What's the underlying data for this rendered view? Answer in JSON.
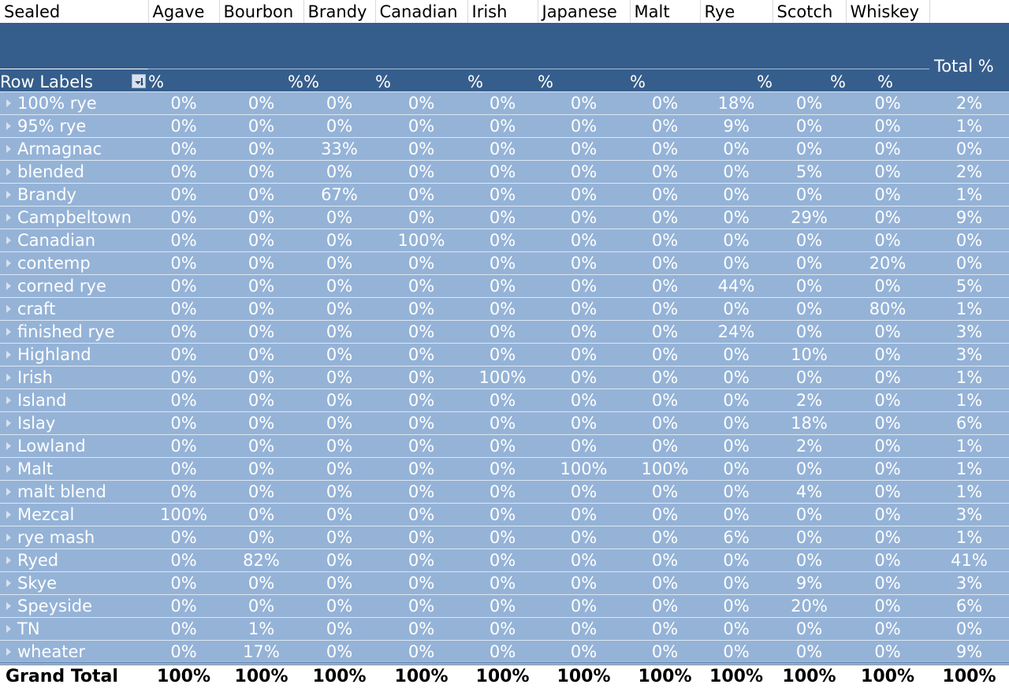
{
  "field_row": {
    "filter_field": "Sealed",
    "columns": [
      "Agave",
      "Bourbon",
      "Brandy",
      "Canadian",
      "Irish",
      "Japanese",
      "Malt",
      "Rye",
      "Scotch",
      "Whiskey"
    ]
  },
  "header": {
    "row_labels": "Row Labels",
    "total_label": "Total %",
    "pct_symbol": "%"
  },
  "rows": [
    {
      "label": "100% rye",
      "values": [
        "0%",
        "0%",
        "0%",
        "0%",
        "0%",
        "0%",
        "0%",
        "18%",
        "0%",
        "0%"
      ],
      "total": "2%"
    },
    {
      "label": "95% rye",
      "values": [
        "0%",
        "0%",
        "0%",
        "0%",
        "0%",
        "0%",
        "0%",
        "9%",
        "0%",
        "0%"
      ],
      "total": "1%"
    },
    {
      "label": "Armagnac",
      "values": [
        "0%",
        "0%",
        "33%",
        "0%",
        "0%",
        "0%",
        "0%",
        "0%",
        "0%",
        "0%"
      ],
      "total": "0%"
    },
    {
      "label": "blended",
      "values": [
        "0%",
        "0%",
        "0%",
        "0%",
        "0%",
        "0%",
        "0%",
        "0%",
        "5%",
        "0%"
      ],
      "total": "2%"
    },
    {
      "label": "Brandy",
      "values": [
        "0%",
        "0%",
        "67%",
        "0%",
        "0%",
        "0%",
        "0%",
        "0%",
        "0%",
        "0%"
      ],
      "total": "1%"
    },
    {
      "label": "Campbeltown",
      "values": [
        "0%",
        "0%",
        "0%",
        "0%",
        "0%",
        "0%",
        "0%",
        "0%",
        "29%",
        "0%"
      ],
      "total": "9%"
    },
    {
      "label": "Canadian",
      "values": [
        "0%",
        "0%",
        "0%",
        "100%",
        "0%",
        "0%",
        "0%",
        "0%",
        "0%",
        "0%"
      ],
      "total": "0%"
    },
    {
      "label": "contemp",
      "values": [
        "0%",
        "0%",
        "0%",
        "0%",
        "0%",
        "0%",
        "0%",
        "0%",
        "0%",
        "20%"
      ],
      "total": "0%"
    },
    {
      "label": "corned rye",
      "values": [
        "0%",
        "0%",
        "0%",
        "0%",
        "0%",
        "0%",
        "0%",
        "44%",
        "0%",
        "0%"
      ],
      "total": "5%"
    },
    {
      "label": "craft",
      "values": [
        "0%",
        "0%",
        "0%",
        "0%",
        "0%",
        "0%",
        "0%",
        "0%",
        "0%",
        "80%"
      ],
      "total": "1%"
    },
    {
      "label": "finished rye",
      "values": [
        "0%",
        "0%",
        "0%",
        "0%",
        "0%",
        "0%",
        "0%",
        "24%",
        "0%",
        "0%"
      ],
      "total": "3%"
    },
    {
      "label": "Highland",
      "values": [
        "0%",
        "0%",
        "0%",
        "0%",
        "0%",
        "0%",
        "0%",
        "0%",
        "10%",
        "0%"
      ],
      "total": "3%"
    },
    {
      "label": "Irish",
      "values": [
        "0%",
        "0%",
        "0%",
        "0%",
        "100%",
        "0%",
        "0%",
        "0%",
        "0%",
        "0%"
      ],
      "total": "1%"
    },
    {
      "label": "Island",
      "values": [
        "0%",
        "0%",
        "0%",
        "0%",
        "0%",
        "0%",
        "0%",
        "0%",
        "2%",
        "0%"
      ],
      "total": "1%"
    },
    {
      "label": "Islay",
      "values": [
        "0%",
        "0%",
        "0%",
        "0%",
        "0%",
        "0%",
        "0%",
        "0%",
        "18%",
        "0%"
      ],
      "total": "6%"
    },
    {
      "label": "Lowland",
      "values": [
        "0%",
        "0%",
        "0%",
        "0%",
        "0%",
        "0%",
        "0%",
        "0%",
        "2%",
        "0%"
      ],
      "total": "1%"
    },
    {
      "label": "Malt",
      "values": [
        "0%",
        "0%",
        "0%",
        "0%",
        "0%",
        "100%",
        "100%",
        "0%",
        "0%",
        "0%"
      ],
      "total": "1%"
    },
    {
      "label": "malt blend",
      "values": [
        "0%",
        "0%",
        "0%",
        "0%",
        "0%",
        "0%",
        "0%",
        "0%",
        "4%",
        "0%"
      ],
      "total": "1%"
    },
    {
      "label": "Mezcal",
      "values": [
        "100%",
        "0%",
        "0%",
        "0%",
        "0%",
        "0%",
        "0%",
        "0%",
        "0%",
        "0%"
      ],
      "total": "3%"
    },
    {
      "label": "rye mash",
      "values": [
        "0%",
        "0%",
        "0%",
        "0%",
        "0%",
        "0%",
        "0%",
        "6%",
        "0%",
        "0%"
      ],
      "total": "1%"
    },
    {
      "label": "Ryed",
      "values": [
        "0%",
        "82%",
        "0%",
        "0%",
        "0%",
        "0%",
        "0%",
        "0%",
        "0%",
        "0%"
      ],
      "total": "41%"
    },
    {
      "label": "Skye",
      "values": [
        "0%",
        "0%",
        "0%",
        "0%",
        "0%",
        "0%",
        "0%",
        "0%",
        "9%",
        "0%"
      ],
      "total": "3%"
    },
    {
      "label": "Speyside",
      "values": [
        "0%",
        "0%",
        "0%",
        "0%",
        "0%",
        "0%",
        "0%",
        "0%",
        "20%",
        "0%"
      ],
      "total": "6%"
    },
    {
      "label": "TN",
      "values": [
        "0%",
        "1%",
        "0%",
        "0%",
        "0%",
        "0%",
        "0%",
        "0%",
        "0%",
        "0%"
      ],
      "total": "0%"
    },
    {
      "label": "wheater",
      "values": [
        "0%",
        "17%",
        "0%",
        "0%",
        "0%",
        "0%",
        "0%",
        "0%",
        "0%",
        "0%"
      ],
      "total": "9%"
    }
  ],
  "grand_total": {
    "label": "Grand Total",
    "values": [
      "100%",
      "100%",
      "100%",
      "100%",
      "100%",
      "100%",
      "100%",
      "100%",
      "100%",
      "100%"
    ],
    "total": "100%"
  },
  "colors": {
    "header_bg": "#365e8c",
    "row_bg": "#95b3d7",
    "row_text": "#ffffff"
  }
}
